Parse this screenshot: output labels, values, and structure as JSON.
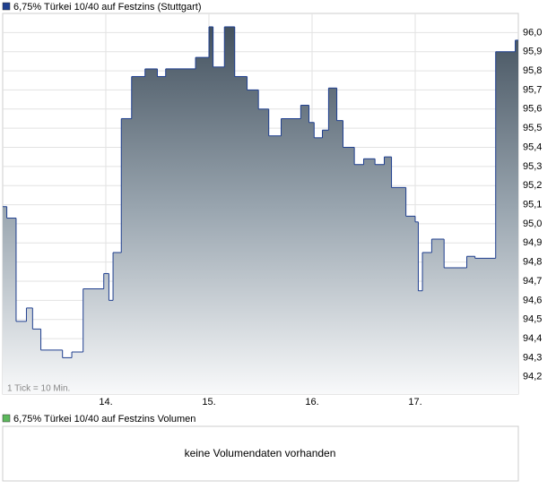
{
  "chart_data": {
    "type": "area",
    "step": true,
    "annotation": "1 Tick = 10 Min.",
    "series": [
      {
        "name": "6,75% Türkei 10/40 auf Festzins (Stuttgart)",
        "color": "#1f3f8f",
        "x": [
          13.0,
          13.04,
          13.13,
          13.23,
          13.29,
          13.37,
          13.58,
          13.67,
          13.78,
          13.98,
          14.03,
          14.07,
          14.15,
          14.25,
          14.38,
          14.5,
          14.58,
          14.87,
          15.0,
          15.04,
          15.15,
          15.25,
          15.37,
          15.48,
          15.58,
          15.7,
          15.89,
          15.97,
          16.02,
          16.1,
          16.16,
          16.24,
          16.3,
          16.41,
          16.5,
          16.61,
          16.7,
          16.77,
          16.91,
          17.0,
          17.03,
          17.07,
          17.16,
          17.28,
          17.5,
          17.58,
          17.78,
          17.97
        ],
        "values": [
          95.09,
          95.03,
          94.49,
          94.56,
          94.45,
          94.34,
          94.3,
          94.33,
          94.66,
          94.74,
          94.6,
          94.85,
          95.55,
          95.77,
          95.81,
          95.77,
          95.81,
          95.87,
          96.03,
          95.82,
          96.03,
          95.77,
          95.7,
          95.6,
          95.46,
          95.55,
          95.62,
          95.53,
          95.45,
          95.49,
          95.71,
          95.54,
          95.4,
          95.31,
          95.34,
          95.31,
          95.35,
          95.19,
          95.04,
          95.01,
          94.65,
          94.85,
          94.92,
          94.77,
          94.83,
          94.82,
          95.9,
          95.96
        ]
      }
    ],
    "xlim": [
      13,
      18
    ],
    "xticks": [
      {
        "value": 14,
        "label": "14."
      },
      {
        "value": 15,
        "label": "15."
      },
      {
        "value": 16,
        "label": "16."
      },
      {
        "value": 17,
        "label": "17."
      }
    ],
    "ylim": [
      94.11,
      96.1
    ],
    "yticks": [
      {
        "value": 94.2,
        "label": "94,2"
      },
      {
        "value": 94.3,
        "label": "94,3"
      },
      {
        "value": 94.4,
        "label": "94,4"
      },
      {
        "value": 94.5,
        "label": "94,5"
      },
      {
        "value": 94.6,
        "label": "94,6"
      },
      {
        "value": 94.7,
        "label": "94,7"
      },
      {
        "value": 94.8,
        "label": "94,8"
      },
      {
        "value": 94.9,
        "label": "94,9"
      },
      {
        "value": 95,
        "label": "95,0"
      },
      {
        "value": 95.1,
        "label": "95,1"
      },
      {
        "value": 95.2,
        "label": "95,2"
      },
      {
        "value": 95.3,
        "label": "95,3"
      },
      {
        "value": 95.4,
        "label": "95,4"
      },
      {
        "value": 95.5,
        "label": "95,5"
      },
      {
        "value": 95.6,
        "label": "95,6"
      },
      {
        "value": 95.7,
        "label": "95,7"
      },
      {
        "value": 95.8,
        "label": "95,8"
      },
      {
        "value": 95.9,
        "label": "95,9"
      },
      {
        "value": 96,
        "label": "96,0"
      }
    ],
    "grid": true
  },
  "volume_panel": {
    "legend": "6,75% Türkei 10/40 auf Festzins Volumen",
    "legend_color": "#5cb85c",
    "message": "keine Volumendaten vorhanden"
  }
}
